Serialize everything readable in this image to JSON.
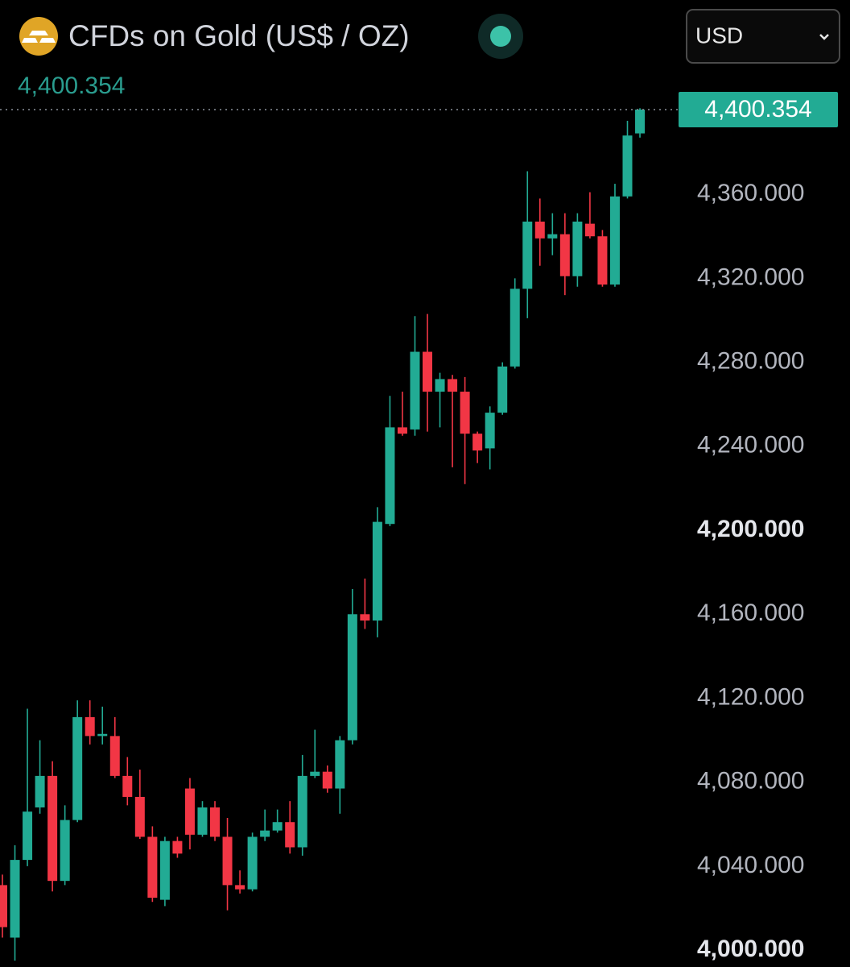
{
  "chart_data": {
    "type": "candlestick",
    "title": "CFDs on Gold (US$ / OZ)",
    "price": "4,400.354",
    "currency": "USD",
    "up_color": "#22ab94",
    "down_color": "#f23645",
    "open": [
      4031,
      4006,
      4043,
      4068,
      4083,
      4033,
      4062,
      4111,
      4102,
      4102,
      4083,
      4073,
      4054,
      4024,
      4052,
      4077,
      4055,
      4068,
      4054,
      4031,
      4029,
      4054,
      4057,
      4061,
      4049,
      4083,
      4085,
      4077,
      4100,
      4160,
      4157,
      4203,
      4249,
      4248,
      4285,
      4266,
      4272,
      4266,
      4246,
      4239,
      4256,
      4278,
      4315,
      4347,
      4339,
      4341,
      4321,
      4346,
      4340,
      4317,
      4359,
      4389
    ],
    "high": [
      4036,
      4050,
      4115,
      4100,
      4090,
      4069,
      4119,
      4119,
      4116,
      4111,
      4092,
      4086,
      4059,
      4054,
      4054,
      4082,
      4071,
      4071,
      4063,
      4038,
      4056,
      4067,
      4067,
      4071,
      4093,
      4105,
      4088,
      4102,
      4172,
      4177,
      4211,
      4264,
      4266,
      4302,
      4303,
      4275,
      4274,
      4273,
      4247,
      4259,
      4280,
      4320,
      4371,
      4358,
      4351,
      4351,
      4351,
      4361,
      4343,
      4365,
      4395,
      4401
    ],
    "low": [
      4006,
      3995,
      4040,
      4065,
      4028,
      4031,
      4061,
      4098,
      4098,
      4082,
      4069,
      4053,
      4023,
      4021,
      4044,
      4048,
      4054,
      4052,
      4019,
      4027,
      4028,
      4052,
      4056,
      4046,
      4045,
      4082,
      4075,
      4065,
      4098,
      4153,
      4149,
      4202,
      4245,
      4245,
      4247,
      4249,
      4230,
      4222,
      4232,
      4229,
      4255,
      4277,
      4301,
      4326,
      4331,
      4312,
      4316,
      4339,
      4316,
      4316,
      4358,
      4387
    ],
    "close": [
      4011,
      4043,
      4066,
      4083,
      4033,
      4062,
      4111,
      4102,
      4103,
      4083,
      4073,
      4054,
      4025,
      4052,
      4046,
      4055,
      4068,
      4054,
      4031,
      4029,
      4054,
      4057,
      4061,
      4049,
      4083,
      4085,
      4077,
      4100,
      4160,
      4157,
      4204,
      4249,
      4246,
      4285,
      4266,
      4272,
      4266,
      4246,
      4238,
      4256,
      4278,
      4315,
      4347,
      4339,
      4341,
      4321,
      4347,
      4340,
      4317,
      4359,
      4388,
      4400.354
    ],
    "ylim": [
      3992,
      4418
    ],
    "yticks": [
      {
        "value": 4000,
        "label": "4,000.000"
      },
      {
        "value": 4040,
        "label": "4,040.000"
      },
      {
        "value": 4080,
        "label": "4,080.000"
      },
      {
        "value": 4120,
        "label": "4,120.000"
      },
      {
        "value": 4160,
        "label": "4,160.000"
      },
      {
        "value": 4200,
        "label": "4,200.000"
      },
      {
        "value": 4240,
        "label": "4,240.000"
      },
      {
        "value": 4280,
        "label": "4,280.000"
      },
      {
        "value": 4320,
        "label": "4,320.000"
      },
      {
        "value": 4360,
        "label": "4,360.000"
      }
    ],
    "last_price": {
      "value": 4400.354,
      "label": "4,400.354"
    }
  }
}
